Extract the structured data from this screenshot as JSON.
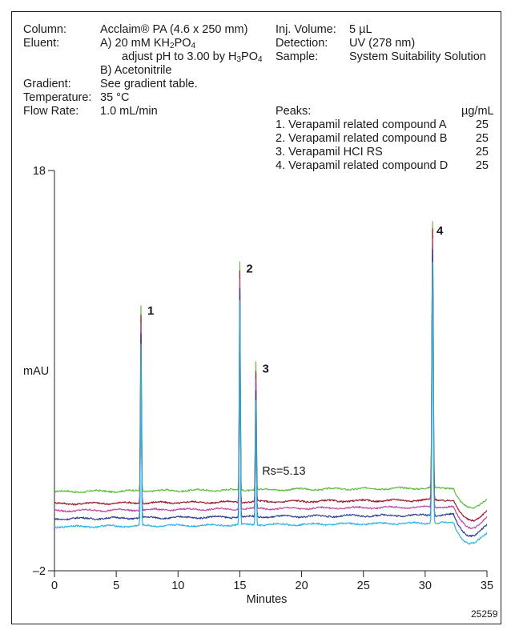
{
  "conditions": {
    "column": {
      "label": "Column:",
      "value": "Acclaim® PA (4.6 x 250 mm)"
    },
    "eluent": {
      "label": "Eluent:",
      "a_prefix": "A)  20 mM KH",
      "a_sub1": "2",
      "a_mid": "PO",
      "a_sub2": "4",
      "a_adjust_prefix": "adjust pH to 3.00 by H",
      "a_adjust_sub1": "3",
      "a_adjust_mid": "PO",
      "a_adjust_sub2": "4",
      "b": "B)  Acetonitrile"
    },
    "gradient": {
      "label": "Gradient:",
      "value": "See gradient table."
    },
    "temperature": {
      "label": "Temperature:",
      "value": "35 °C"
    },
    "flow_rate": {
      "label": "Flow Rate:",
      "value": "1.0 mL/min"
    },
    "inj_volume": {
      "label": "Inj. Volume:",
      "value": "5 µL"
    },
    "detection": {
      "label": "Detection:",
      "value": "UV (278 nm)"
    },
    "sample": {
      "label": "Sample:",
      "value": "System Suitability Solution"
    }
  },
  "peaks_table": {
    "header": "Peaks:",
    "unit": "µg/mL",
    "rows": [
      {
        "name": "1. Verapamil related compound A",
        "conc": "25"
      },
      {
        "name": "2. Verapamil related compound B",
        "conc": "25"
      },
      {
        "name": "3. Verapamil HCI RS",
        "conc": "25"
      },
      {
        "name": "4. Verapamil related compound D",
        "conc": "25"
      }
    ]
  },
  "figure_id": "25259",
  "chart_data": {
    "type": "line",
    "xlabel": "Minutes",
    "ylabel": "mAU",
    "xlim": [
      0,
      35
    ],
    "ylim": [
      -2,
      18
    ],
    "x_ticks": [
      "0",
      "5",
      "10",
      "15",
      "20",
      "25",
      "30",
      "35"
    ],
    "y_tick_labels": [
      "18",
      "–2"
    ],
    "grid": false,
    "annotations": [
      {
        "text": "Rs=5.13",
        "x": 16.8,
        "y": 2.8
      }
    ],
    "peak_labels": [
      {
        "label": "1",
        "x": 7.0,
        "y": 10.8
      },
      {
        "label": "2",
        "x": 15.0,
        "y": 12.9
      },
      {
        "label": "3",
        "x": 16.3,
        "y": 7.9
      },
      {
        "label": "4",
        "x": 30.4,
        "y": 14.8
      }
    ],
    "series": [
      {
        "color": "#5bbf3f",
        "baseline": 1.95,
        "peak_heights": [
          9.3,
          11.4,
          6.4,
          13.3
        ]
      },
      {
        "color": "#9b1c2e",
        "baseline": 1.35,
        "peak_heights": [
          9.4,
          11.6,
          6.5,
          13.5
        ]
      },
      {
        "color": "#c04aa8",
        "baseline": 1.0,
        "peak_heights": [
          9.3,
          11.5,
          6.4,
          13.4
        ]
      },
      {
        "color": "#2e3f8f",
        "baseline": 0.6,
        "peak_heights": [
          9.2,
          11.4,
          6.3,
          13.3
        ]
      },
      {
        "color": "#2ab4e6",
        "baseline": 0.2,
        "peak_heights": [
          9.0,
          11.2,
          6.2,
          13.1
        ]
      }
    ],
    "peak_times": [
      7.0,
      15.0,
      16.3,
      30.6
    ]
  }
}
